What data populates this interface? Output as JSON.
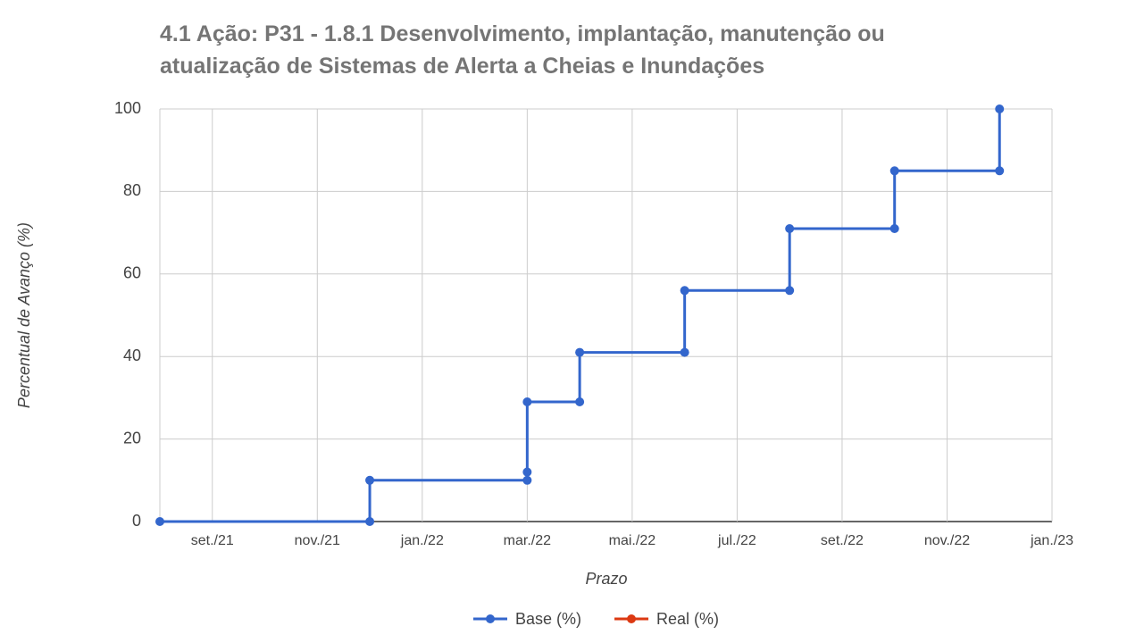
{
  "chart_data": {
    "type": "line",
    "title": "4.1 Ação: P31 - 1.8.1 Desenvolvimento, implantação, manutenção ou atualização de Sistemas de Alerta a Cheias e Inundações",
    "x_label": "Prazo",
    "y_label": "Percentual de Avanço (%)",
    "x": [
      "2021-08",
      "2021-12",
      "2021-12",
      "2022-03",
      "2022-03",
      "2022-03",
      "2022-04",
      "2022-04",
      "2022-06",
      "2022-06",
      "2022-08",
      "2022-08",
      "2022-10",
      "2022-10",
      "2022-12",
      "2022-12"
    ],
    "series": [
      {
        "name": "Base (%)",
        "color": "#3366cc",
        "values": [
          0,
          0,
          10,
          10,
          12,
          29,
          29,
          41,
          41,
          56,
          56,
          71,
          71,
          85,
          85,
          100
        ]
      },
      {
        "name": "Real (%)",
        "color": "#dc3912",
        "values": [
          null,
          null,
          null,
          null,
          null,
          null,
          null,
          null,
          null,
          null,
          null,
          null,
          null,
          null,
          null,
          null
        ]
      }
    ],
    "xlim": [
      "2021-08",
      "2023-01"
    ],
    "xticks": [
      {
        "value": "2021-09",
        "label": "set./21"
      },
      {
        "value": "2021-11",
        "label": "nov./21"
      },
      {
        "value": "2022-01",
        "label": "jan./22"
      },
      {
        "value": "2022-03",
        "label": "mar./22"
      },
      {
        "value": "2022-05",
        "label": "mai./22"
      },
      {
        "value": "2022-07",
        "label": "jul./22"
      },
      {
        "value": "2022-09",
        "label": "set./22"
      },
      {
        "value": "2022-11",
        "label": "nov./22"
      },
      {
        "value": "2023-01",
        "label": "jan./23"
      }
    ],
    "ylim": [
      0,
      100
    ],
    "yticks": [
      0,
      20,
      40,
      60,
      80,
      100
    ],
    "grid": true,
    "legend": "bottom"
  }
}
